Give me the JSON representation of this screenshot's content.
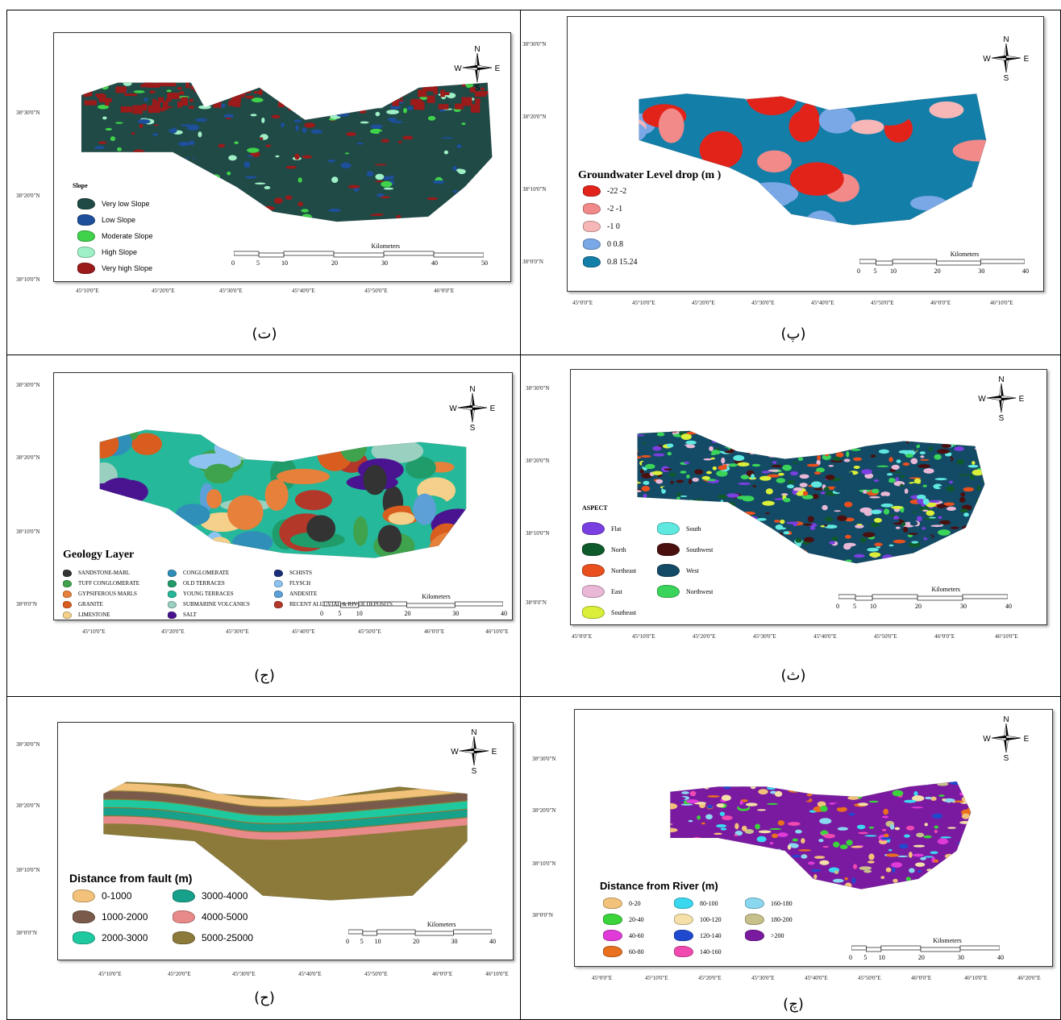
{
  "panels": [
    {
      "id": "slope",
      "caption": "(ت)",
      "legend_title": "Slope",
      "legend": [
        {
          "label": "Very low Slope",
          "color": "#1f4a46"
        },
        {
          "label": "Low Slope",
          "color": "#1d4f9a"
        },
        {
          "label": "Moderate Slope",
          "color": "#3fd24a"
        },
        {
          "label": "High Slope",
          "color": "#9ff0c6"
        },
        {
          "label": "Very high Slope",
          "color": "#9b1a1a"
        }
      ],
      "lats": [
        "38°30'0\"N",
        "38°20'0\"N",
        "38°10'0\"N"
      ],
      "lons": [
        "45°10'0\"E",
        "45°20'0\"E",
        "45°30'0\"E",
        "45°40'0\"E",
        "45°50'0\"E",
        "46°0'0\"E"
      ],
      "scale_title": "Kilometers",
      "scale_labels": [
        "0",
        "5",
        "10",
        "20",
        "30",
        "40",
        "50"
      ]
    },
    {
      "id": "groundwater",
      "caption": "(پ)",
      "legend_title": "Groundwater Level drop (m  )",
      "legend": [
        {
          "label": "-22   -2",
          "color": "#e2231a"
        },
        {
          "label": "-2     -1",
          "color": "#f28a8a"
        },
        {
          "label": "-1      0",
          "color": "#f7b7b7"
        },
        {
          "label": "0      0.8",
          "color": "#7aa7e6"
        },
        {
          "label": "0.8   15.24",
          "color": "#137ea8"
        }
      ],
      "lats": [
        "38°30'0\"N",
        "38°20'0\"N",
        "38°10'0\"N",
        "38°0'0\"N"
      ],
      "lons": [
        "45°0'0\"E",
        "45°10'0\"E",
        "45°20'0\"E",
        "45°30'0\"E",
        "45°40'0\"E",
        "45°50'0\"E",
        "46°0'0\"E",
        "46°10'0\"E"
      ],
      "scale_title": "Kilometers",
      "scale_labels": [
        "0",
        "5",
        "10",
        "20",
        "30",
        "40"
      ]
    },
    {
      "id": "geology",
      "caption": "(ج)",
      "legend_title": "Geology Layer",
      "legend": [
        {
          "label": "SANDSTONE-MARL",
          "color": "#333333"
        },
        {
          "label": "TUFF CONGLOMERATE",
          "color": "#3fa34d"
        },
        {
          "label": "GYPSIFEROUS MARLS",
          "color": "#e7803b"
        },
        {
          "label": "GRANITE",
          "color": "#d95d1e"
        },
        {
          "label": "LIMESTONE",
          "color": "#f4d08a"
        },
        {
          "label": "CONGLOMERATE",
          "color": "#2f8fb8"
        },
        {
          "label": "OLD TERRACES",
          "color": "#1f9c6a"
        },
        {
          "label": "YOUNG TERRACES",
          "color": "#25b89a"
        },
        {
          "label": "SUBMARINE VOLCANICS",
          "color": "#9ad0c0"
        },
        {
          "label": "SALT",
          "color": "#4a1390"
        },
        {
          "label": "SCHISTS",
          "color": "#1b2e7a"
        },
        {
          "label": "FLYSCH",
          "color": "#8ec3f0"
        },
        {
          "label": "ANDESITE",
          "color": "#5da0d8"
        },
        {
          "label": "RECENT ALLUVIAL & RIVER DEPOSITS",
          "color": "#b3382a"
        }
      ],
      "lats": [
        "38°30'0\"N",
        "38°20'0\"N",
        "38°10'0\"N",
        "38°0'0\"N"
      ],
      "lons": [
        "45°10'0\"E",
        "45°20'0\"E",
        "45°30'0\"E",
        "45°40'0\"E",
        "45°50'0\"E",
        "46°0'0\"E",
        "46°10'0\"E"
      ],
      "scale_title": "Kilometers",
      "scale_labels": [
        "0",
        "5",
        "10",
        "20",
        "30",
        "40"
      ]
    },
    {
      "id": "aspect",
      "caption": "(ث)",
      "legend_title": "ASPECT",
      "legend": [
        {
          "label": "Flat",
          "color": "#7a3fe0"
        },
        {
          "label": "North",
          "color": "#0f5a2a"
        },
        {
          "label": "Northeast",
          "color": "#e8501e"
        },
        {
          "label": "East",
          "color": "#e8b8d6"
        },
        {
          "label": "Southeast",
          "color": "#d9ef3a"
        },
        {
          "label": "South",
          "color": "#5fe8e0"
        },
        {
          "label": "Southwest",
          "color": "#4a1010"
        },
        {
          "label": "West",
          "color": "#134a66"
        },
        {
          "label": "Northwest",
          "color": "#3ad45a"
        }
      ],
      "lats": [
        "38°30'0\"N",
        "38°20'0\"N",
        "38°10'0\"N",
        "38°0'0\"N"
      ],
      "lons": [
        "45°0'0\"E",
        "45°10'0\"E",
        "45°20'0\"E",
        "45°30'0\"E",
        "45°40'0\"E",
        "45°50'0\"E",
        "46°0'0\"E",
        "46°10'0\"E"
      ],
      "scale_title": "Kilometers",
      "scale_labels": [
        "0",
        "5",
        "10",
        "20",
        "30",
        "40"
      ]
    },
    {
      "id": "fault",
      "caption": "(ح)",
      "legend_title": "Distance from fault (m)",
      "legend": [
        {
          "label": "0-1000",
          "color": "#f2c27a"
        },
        {
          "label": "1000-2000",
          "color": "#7a5a4a"
        },
        {
          "label": "2000-3000",
          "color": "#1fc9a0"
        },
        {
          "label": "3000-4000",
          "color": "#17a08a"
        },
        {
          "label": "4000-5000",
          "color": "#e88a8a"
        },
        {
          "label": "5000-25000",
          "color": "#8b7a3a"
        }
      ],
      "lats": [
        "38°30'0\"N",
        "38°20'0\"N",
        "38°10'0\"N",
        "38°0'0\"N"
      ],
      "lons": [
        "45°10'0\"E",
        "45°20'0\"E",
        "45°30'0\"E",
        "45°40'0\"E",
        "45°50'0\"E",
        "46°0'0\"E",
        "46°10'0\"E"
      ],
      "scale_title": "Kilometers",
      "scale_labels": [
        "0",
        "5",
        "10",
        "20",
        "30",
        "40"
      ]
    },
    {
      "id": "river",
      "caption": "(چ)",
      "legend_title": "Distance from River (m)",
      "legend": [
        {
          "label": "0-20",
          "color": "#f2c27a"
        },
        {
          "label": "20-40",
          "color": "#3ad43a"
        },
        {
          "label": "40-60",
          "color": "#e03ad8"
        },
        {
          "label": "60-80",
          "color": "#e8701e"
        },
        {
          "label": "80-100",
          "color": "#3ad8f0"
        },
        {
          "label": "100-120",
          "color": "#f4e0a8"
        },
        {
          "label": "120-140",
          "color": "#1f4ad0"
        },
        {
          "label": "140-160",
          "color": "#f04ab0"
        },
        {
          "label": "160-180",
          "color": "#8ad8f0"
        },
        {
          "label": "180-200",
          "color": "#c8c08a"
        },
        {
          "label": ">200",
          "color": "#7a1aa0"
        }
      ],
      "lats": [
        "38°30'0\"N",
        "38°20'0\"N",
        "38°10'0\"N",
        "38°0'0\"N"
      ],
      "lons": [
        "45°0'0\"E",
        "45°10'0\"E",
        "45°20'0\"E",
        "45°30'0\"E",
        "45°40'0\"E",
        "45°50'0\"E",
        "46°0'0\"E",
        "46°10'0\"E",
        "46°20'0\"E"
      ],
      "scale_title": "Kilometers",
      "scale_labels": [
        "0",
        "5",
        "10",
        "20",
        "30",
        "40"
      ]
    }
  ],
  "north_arrow": {
    "n": "N",
    "s": "S",
    "e": "E",
    "w": "W"
  }
}
